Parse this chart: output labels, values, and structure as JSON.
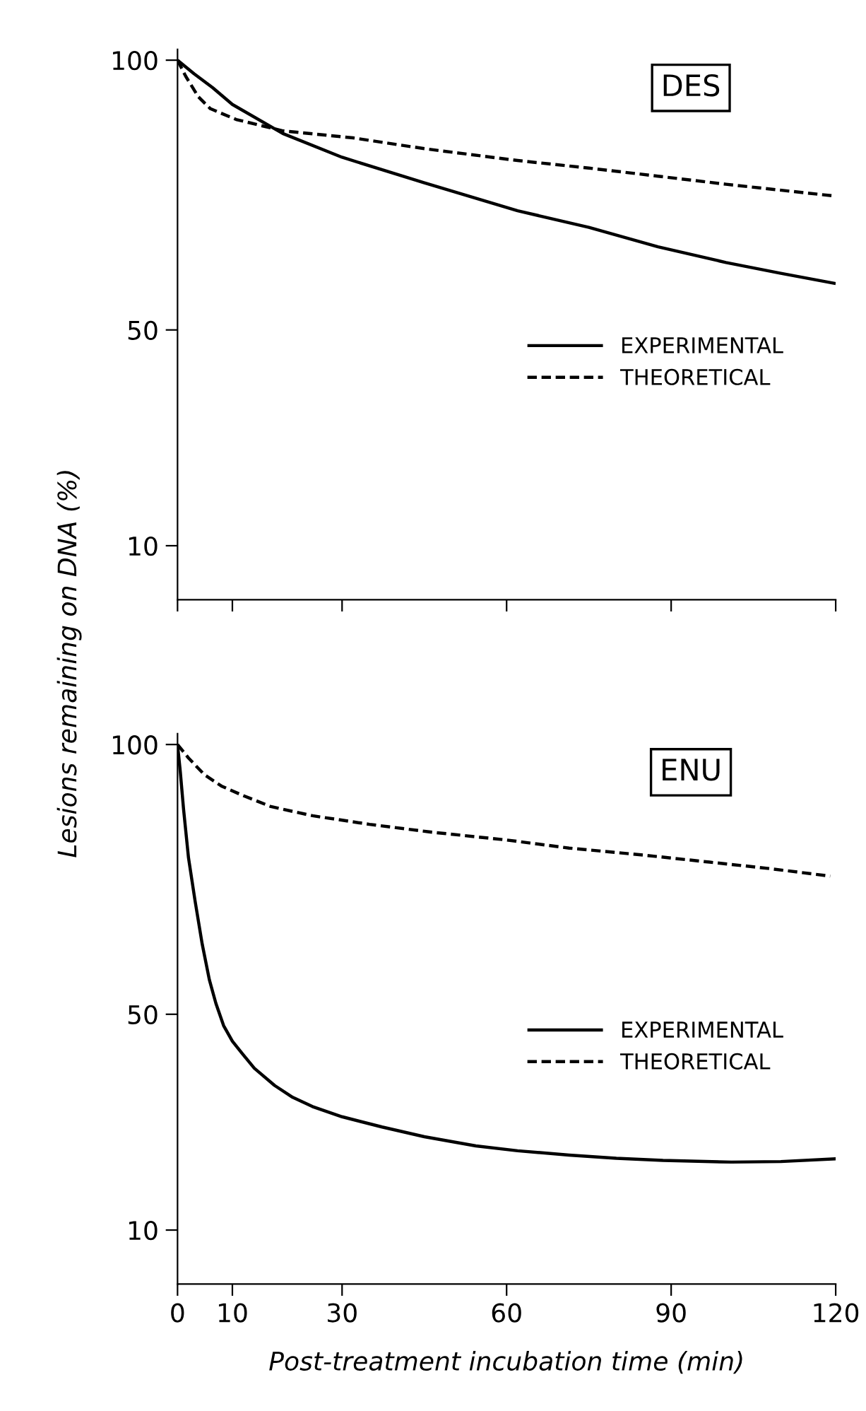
{
  "chart_data": [
    {
      "type": "line",
      "title": "DES",
      "ylabel": "Lesions remaining on DNA (%)",
      "xlim": [
        0,
        120
      ],
      "xticks": [
        {
          "value": 0,
          "label": null
        },
        {
          "value": 10,
          "label": null
        },
        {
          "value": 30,
          "label": null
        },
        {
          "value": 60,
          "label": null
        },
        {
          "value": 90,
          "label": null
        },
        {
          "value": 120,
          "label": null
        }
      ],
      "ylim": [
        0,
        102
      ],
      "yticks": [
        10,
        50,
        100
      ],
      "tick_labels": "y",
      "legend": "right",
      "grid": false,
      "series": [
        {
          "name": "EXPERIMENTAL",
          "color": "#000000",
          "line_style": "solid",
          "x": [
            0,
            3,
            6.4,
            10,
            19.2,
            30,
            44.9,
            62,
            75,
            87.6,
            100,
            110,
            120
          ],
          "values": [
            100,
            97.5,
            94.9,
            91.8,
            86.4,
            82,
            77.3,
            72.1,
            69,
            65.4,
            62.5,
            60.5,
            58.6
          ]
        },
        {
          "name": "THEORETICAL",
          "color": "#000000",
          "line_style": "dashed",
          "x": [
            0,
            1.5,
            3.8,
            6,
            10.7,
            19.2,
            32,
            45,
            62,
            75,
            87.6,
            100,
            120
          ],
          "values": [
            100,
            97,
            93.2,
            91,
            89,
            86.9,
            85.6,
            83.6,
            81.4,
            80,
            78.5,
            77,
            74.8
          ]
        }
      ]
    },
    {
      "type": "line",
      "title": "ENU",
      "xlabel": "Post-treatment incubation time (min)",
      "xlim": [
        0,
        120
      ],
      "xticks": [
        0,
        10,
        30,
        60,
        90,
        120
      ],
      "ylim": [
        0,
        102
      ],
      "yticks": [
        10,
        50,
        100
      ],
      "legend": "right",
      "grid": false,
      "series": [
        {
          "name": "EXPERIMENTAL",
          "color": "#000000",
          "line_style": "solid",
          "x": [
            0,
            0.5,
            1.1,
            2,
            3.2,
            4.5,
            5.8,
            7,
            8.4,
            10,
            11.8,
            14,
            17.7,
            21,
            24.6,
            30,
            37.3,
            45,
            54.4,
            62,
            71.4,
            80,
            88.5,
            101,
            110,
            120
          ],
          "values": [
            100,
            95,
            88,
            79,
            71,
            63,
            56.4,
            52,
            47.9,
            45,
            42.7,
            40,
            36.8,
            34.6,
            32.9,
            31,
            29.1,
            27.3,
            25.6,
            24.7,
            23.9,
            23.3,
            22.9,
            22.6,
            22.7,
            23.2
          ]
        },
        {
          "name": "THEORETICAL",
          "color": "#000000",
          "line_style": "dashed",
          "x": [
            0,
            2,
            4.9,
            8,
            11.8,
            17,
            24.6,
            35,
            45.9,
            60,
            71.4,
            85,
            97,
            108,
            119
          ],
          "values": [
            100,
            97.5,
            94.4,
            92.3,
            90.6,
            88.5,
            86.8,
            85.2,
            83.8,
            82.3,
            80.8,
            79.5,
            78.2,
            77,
            75.6
          ]
        }
      ]
    }
  ]
}
